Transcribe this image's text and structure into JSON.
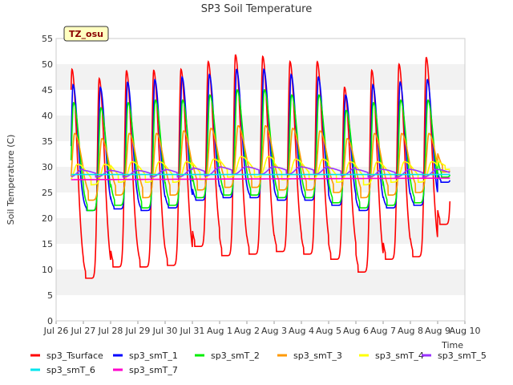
{
  "chart_data": {
    "type": "line",
    "title": "SP3 Soil Temperature",
    "xlabel": "Time",
    "ylabel": "Soil Temperature (C)",
    "ylim": [
      0,
      55
    ],
    "yticks": [
      0,
      5,
      10,
      15,
      20,
      25,
      30,
      35,
      40,
      45,
      50,
      55
    ],
    "xlim": [
      0,
      15
    ],
    "xticks": [
      0,
      1,
      2,
      3,
      4,
      5,
      6,
      7,
      8,
      9,
      10,
      11,
      12,
      13,
      14,
      15
    ],
    "xtick_labels": [
      "Jul 26",
      "Jul 27",
      "Jul 28",
      "Jul 29",
      "Jul 30",
      "Jul 31",
      "Aug 1",
      "Aug 2",
      "Aug 3",
      "Aug 4",
      "Aug 5",
      "Aug 6",
      "Aug 7",
      "Aug 8",
      "Aug 9",
      "Aug 10"
    ],
    "x_range": [
      0.55,
      14.45
    ],
    "grid": "horizontal bands",
    "tag": "TZ_osu",
    "legend_position": "bottom",
    "series": [
      {
        "name": "sp3_Tsurface",
        "color": "#ff0000",
        "kind": "diurnal",
        "phase": 0.58,
        "width": 0.12,
        "min": [
          8.5,
          8.3,
          10.5,
          10.5,
          10.8,
          14.5,
          12.7,
          13.0,
          13.5,
          13.0,
          12.0,
          9.5,
          12.0,
          12.5,
          18.8
        ],
        "max": [
          49.0,
          47.2,
          48.7,
          48.8,
          49.0,
          50.5,
          51.8,
          51.5,
          50.5,
          50.5,
          45.5,
          48.8,
          50.0,
          51.3,
          50.0
        ]
      },
      {
        "name": "sp3_smT_1",
        "color": "#0000ff",
        "kind": "diurnal",
        "phase": 0.62,
        "width": 0.11,
        "min": [
          21.5,
          21.5,
          21.8,
          21.5,
          22.0,
          23.5,
          24.0,
          24.0,
          23.5,
          23.5,
          22.5,
          21.5,
          22.0,
          22.5,
          27.0
        ],
        "max": [
          46.0,
          45.5,
          46.5,
          47.0,
          47.5,
          48.0,
          49.0,
          49.0,
          48.0,
          47.5,
          44.0,
          46.0,
          46.5,
          47.0,
          47.0
        ]
      },
      {
        "name": "sp3_smT_2",
        "color": "#00ee00",
        "kind": "diurnal",
        "phase": 0.64,
        "width": 0.13,
        "min": [
          22.0,
          21.5,
          22.5,
          22.0,
          22.5,
          24.0,
          24.5,
          24.5,
          24.0,
          24.0,
          23.0,
          22.0,
          22.5,
          23.0,
          28.0
        ],
        "max": [
          42.5,
          41.5,
          42.5,
          43.0,
          43.0,
          44.0,
          45.0,
          45.0,
          44.0,
          44.0,
          41.0,
          42.5,
          43.0,
          43.0,
          43.5
        ]
      },
      {
        "name": "sp3_smT_3",
        "color": "#ff9900",
        "kind": "diurnal",
        "phase": 0.68,
        "width": 0.16,
        "min": [
          24.0,
          23.5,
          24.5,
          24.0,
          24.5,
          25.5,
          26.0,
          26.0,
          25.5,
          25.5,
          25.0,
          24.0,
          24.5,
          25.0,
          29.0
        ],
        "max": [
          36.5,
          35.5,
          36.5,
          36.5,
          37.0,
          37.5,
          38.0,
          38.0,
          37.5,
          37.0,
          35.5,
          36.5,
          36.5,
          36.5,
          37.0
        ]
      },
      {
        "name": "sp3_smT_4",
        "color": "#ffff00",
        "kind": "diurnal",
        "phase": 0.78,
        "width": 0.22,
        "min": [
          27.0,
          26.5,
          27.0,
          27.0,
          27.0,
          27.5,
          28.0,
          28.0,
          27.5,
          27.5,
          27.0,
          26.5,
          27.0,
          27.0,
          29.5
        ],
        "max": [
          30.5,
          30.5,
          31.0,
          31.0,
          31.0,
          31.5,
          32.0,
          32.0,
          31.5,
          31.5,
          31.0,
          31.0,
          31.0,
          31.0,
          31.5
        ]
      },
      {
        "name": "sp3_smT_5",
        "color": "#9933ff",
        "kind": "diurnal",
        "phase": 0.95,
        "width": 0.3,
        "min": [
          28.0,
          28.0,
          28.0,
          28.0,
          28.0,
          28.2,
          28.5,
          28.5,
          28.5,
          28.5,
          28.3,
          28.0,
          28.0,
          28.0,
          28.0
        ],
        "max": [
          29.5,
          29.3,
          29.3,
          29.3,
          29.5,
          29.8,
          30.0,
          30.0,
          30.0,
          30.0,
          29.8,
          29.5,
          29.5,
          29.5,
          29.5
        ]
      },
      {
        "name": "sp3_smT_6",
        "color": "#00e5ee",
        "kind": "linear",
        "start": 28.5,
        "end": 28.5
      },
      {
        "name": "sp3_smT_7",
        "color": "#ff00cc",
        "kind": "linear",
        "start": 27.5,
        "end": 27.8
      }
    ]
  }
}
